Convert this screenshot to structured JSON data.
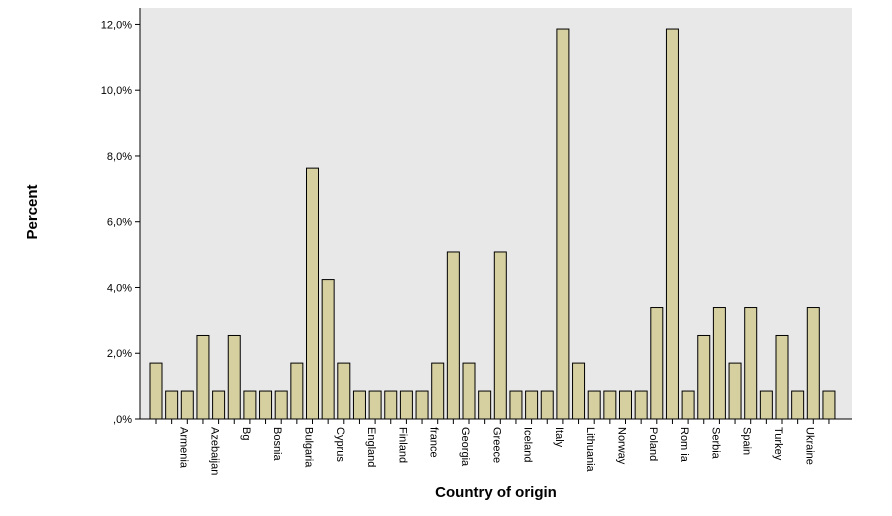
{
  "chart_data": {
    "type": "bar",
    "xlabel": "Country of origin",
    "ylabel": "Percent",
    "ylim": [
      0,
      12.5
    ],
    "yticks": [
      0,
      2,
      4,
      6,
      8,
      10,
      12
    ],
    "ytick_labels": [
      ",0%",
      "2,0%",
      "4,0%",
      "6,0%",
      "8,0%",
      "10,0%",
      "12,0%"
    ],
    "grid": false,
    "legend": "none",
    "bar_color": "#d6d0a0",
    "plot_background": "#e8e8e8",
    "categories": [
      "",
      "",
      "Armenia",
      "",
      "Azebaijan",
      "",
      "Bg",
      "",
      "Bosnia",
      "",
      "Bulgaria",
      "",
      "Cyprus",
      "",
      "England",
      "",
      "Finland",
      "",
      "france",
      "",
      "Georgia",
      "",
      "Greece",
      "",
      "Iceland",
      "",
      "Italy",
      "",
      "Lithuania",
      "",
      "Norway",
      "",
      "Poland",
      "",
      "Rom ia",
      "",
      "Serbia",
      "",
      "Spain",
      "",
      "Turkey",
      "",
      "Ukraine",
      ""
    ],
    "values": [
      1.7,
      0.85,
      0.85,
      2.54,
      0.85,
      2.54,
      0.85,
      0.85,
      0.85,
      1.7,
      7.63,
      4.24,
      1.7,
      0.85,
      0.85,
      0.85,
      0.85,
      0.85,
      1.7,
      5.08,
      1.7,
      0.85,
      5.08,
      0.85,
      0.85,
      0.85,
      11.86,
      1.7,
      0.85,
      0.85,
      0.85,
      0.85,
      3.39,
      11.86,
      0.85,
      2.54,
      3.39,
      1.7,
      3.39,
      0.85,
      2.54,
      0.85,
      3.39,
      0.85
    ]
  }
}
